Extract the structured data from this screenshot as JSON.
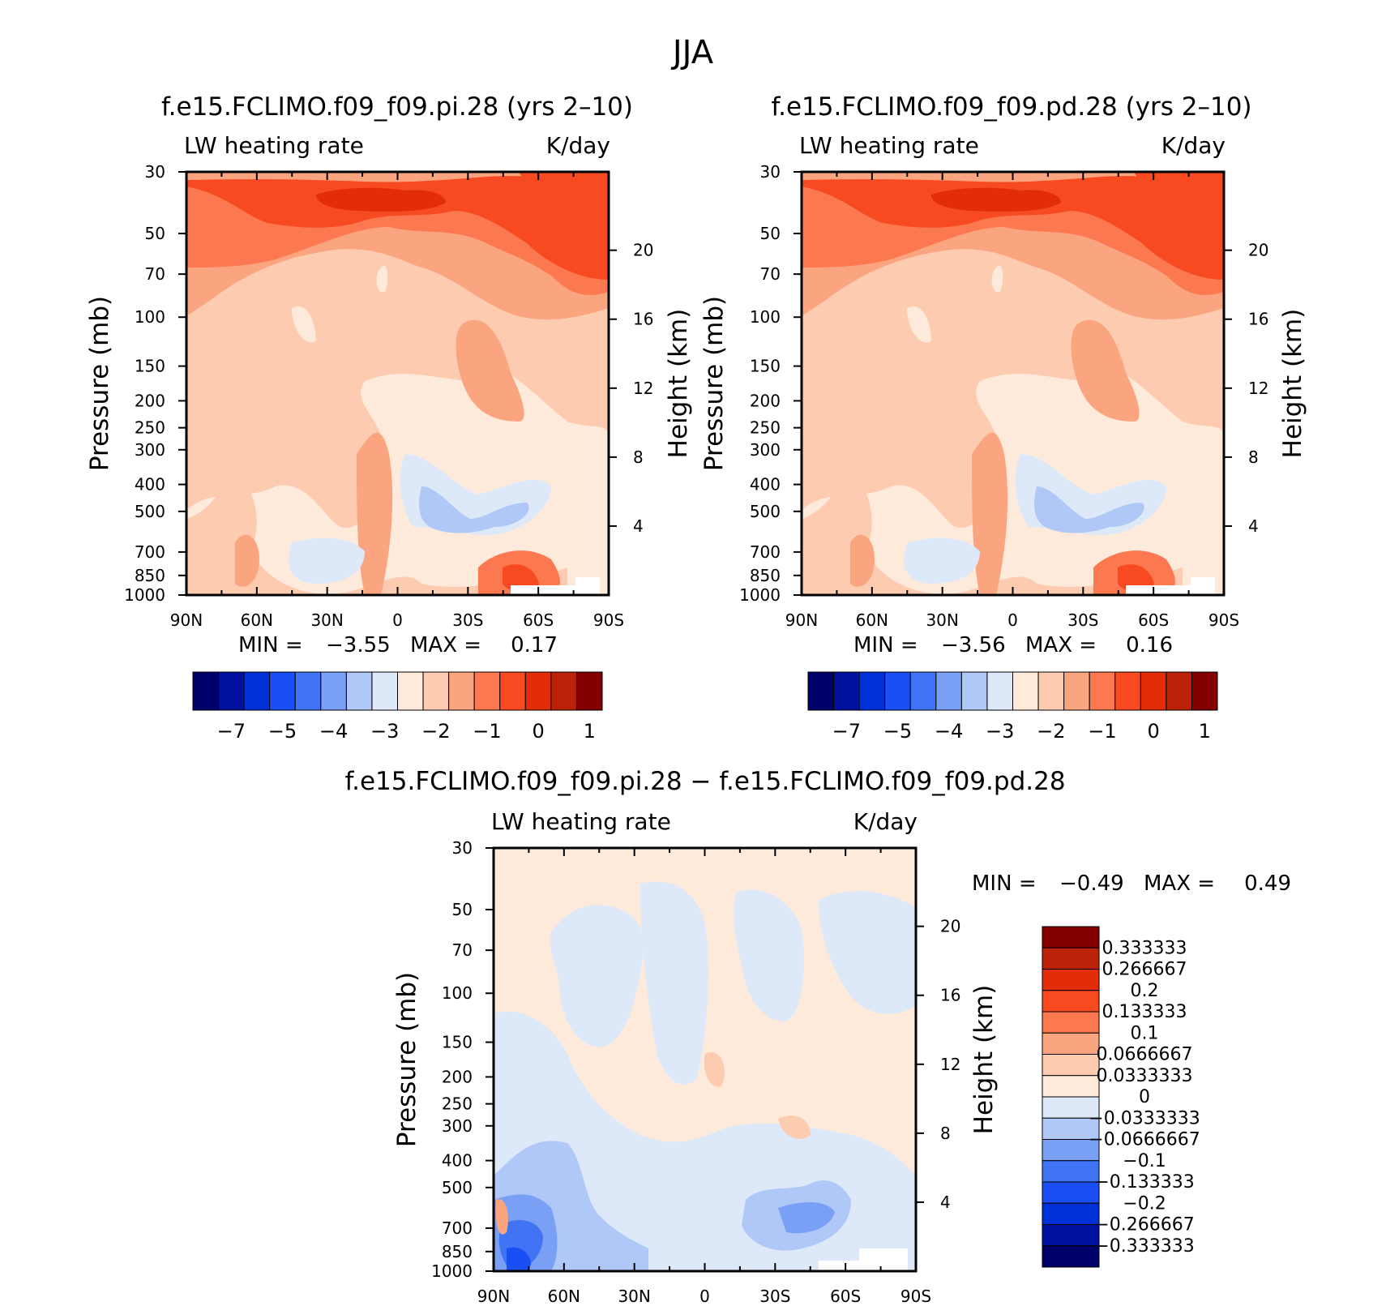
{
  "page_title": "JJA",
  "colors": {
    "abs_fills": [
      "#00006a",
      "#0011a0",
      "#0030d8",
      "#1a4ff5",
      "#4174f5",
      "#7aa0f5",
      "#b0c8f7",
      "#dde9f9",
      "#fdeadb",
      "#fdcbb0",
      "#fba580",
      "#fb7850",
      "#f74a20",
      "#e22d08",
      "#bc2208",
      "#840000"
    ],
    "diff_fills": [
      "#00006a",
      "#0011a0",
      "#0030d8",
      "#1a4ff5",
      "#4174f5",
      "#7aa0f5",
      "#b0c8f7",
      "#dde9f9",
      "#fdeadb",
      "#fdcbb0",
      "#fba580",
      "#fb7850",
      "#f74a20",
      "#e22d08",
      "#bc2208",
      "#840000"
    ]
  },
  "chart_data": [
    {
      "type": "heatmap",
      "title": "f.e15.FCLIMO.f09_f09.pi.28 (yrs 2–10)",
      "variable": "LW heating rate",
      "units": "K/day",
      "xlabel": "",
      "ylabel": "Pressure (mb)",
      "ylabel_right": "Height (km)",
      "x_ticks": [
        "90N",
        "60N",
        "30N",
        "0",
        "30S",
        "60S",
        "90S"
      ],
      "y_ticks": [
        "30",
        "50",
        "70",
        "100",
        "150",
        "200",
        "250",
        "300",
        "400",
        "500",
        "700",
        "850",
        "1000"
      ],
      "height_ticks": [
        "20",
        "16",
        "12",
        "8",
        "4"
      ],
      "stats": {
        "min_label": "MIN =",
        "min": "−3.55",
        "max_label": "MAX =",
        "max": "0.17"
      },
      "colorbar_labels": [
        "−7",
        "−5",
        "−4",
        "−3",
        "−2",
        "−1",
        "0",
        "1"
      ]
    },
    {
      "type": "heatmap",
      "title": "f.e15.FCLIMO.f09_f09.pd.28 (yrs 2–10)",
      "variable": "LW heating rate",
      "units": "K/day",
      "xlabel": "",
      "ylabel": "Pressure (mb)",
      "ylabel_right": "Height (km)",
      "x_ticks": [
        "90N",
        "60N",
        "30N",
        "0",
        "30S",
        "60S",
        "90S"
      ],
      "y_ticks": [
        "30",
        "50",
        "70",
        "100",
        "150",
        "200",
        "250",
        "300",
        "400",
        "500",
        "700",
        "850",
        "1000"
      ],
      "height_ticks": [
        "20",
        "16",
        "12",
        "8",
        "4"
      ],
      "stats": {
        "min_label": "MIN =",
        "min": "−3.56",
        "max_label": "MAX =",
        "max": "0.16"
      },
      "colorbar_labels": [
        "−7",
        "−5",
        "−4",
        "−3",
        "−2",
        "−1",
        "0",
        "1"
      ]
    },
    {
      "type": "heatmap",
      "title": "f.e15.FCLIMO.f09_f09.pi.28 − f.e15.FCLIMO.f09_f09.pd.28",
      "variable": "LW heating rate",
      "units": "K/day",
      "xlabel": "",
      "ylabel": "Pressure (mb)",
      "ylabel_right": "Height (km)",
      "x_ticks": [
        "90N",
        "60N",
        "30N",
        "0",
        "30S",
        "60S",
        "90S"
      ],
      "y_ticks": [
        "30",
        "50",
        "70",
        "100",
        "150",
        "200",
        "250",
        "300",
        "400",
        "500",
        "700",
        "850",
        "1000"
      ],
      "height_ticks": [
        "20",
        "16",
        "12",
        "8",
        "4"
      ],
      "stats": {
        "min_label": "MIN =",
        "min": "−0.49",
        "max_label": "MAX =",
        "max": "0.49"
      },
      "colorbar_labels": [
        "0.333333",
        "0.266667",
        "0.2",
        "0.133333",
        "0.1",
        "0.0666667",
        "0.0333333",
        "0",
        "−0.0333333",
        "−0.0666667",
        "−0.1",
        "−0.133333",
        "−0.2",
        "−0.266667",
        "−0.333333"
      ]
    }
  ]
}
